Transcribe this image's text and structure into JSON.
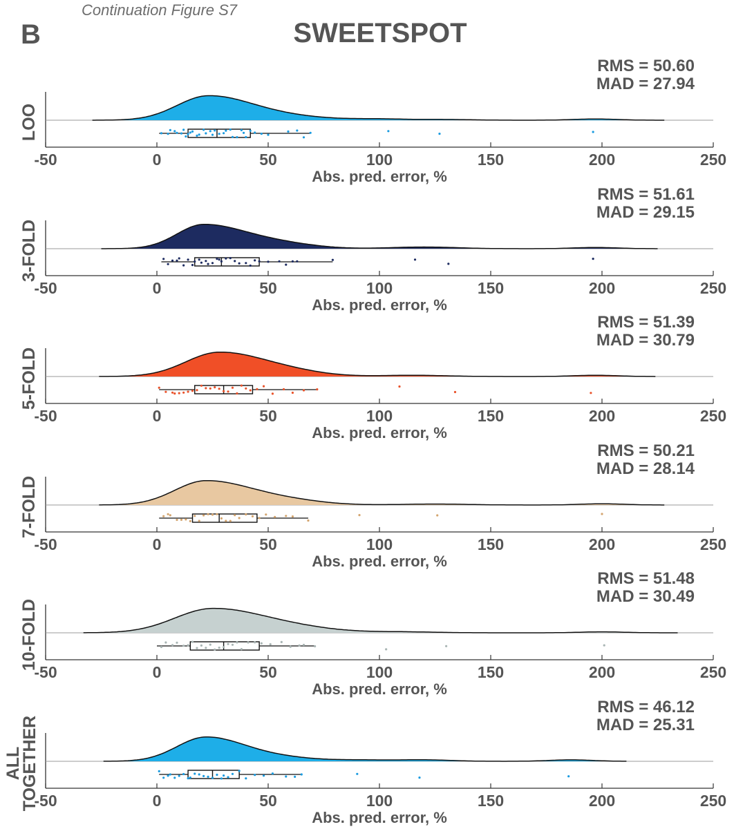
{
  "figure": {
    "caption": "Continuation Figure S7",
    "panel_letter": "B",
    "title": "SWEETSPOT"
  },
  "chart_data": [
    {
      "type": "raincloud",
      "panel": "LOO",
      "color": "#1eaee8",
      "dot_color": "#1a9be0",
      "rms_text": "RMS = 50.60",
      "mad_text": "MAD = 27.94",
      "xlabel": "Abs. pred. error, %",
      "xlim": [
        -50,
        250
      ],
      "xticks": [
        "-50",
        "0",
        "50",
        "100",
        "150",
        "200",
        "250"
      ],
      "density_range": [
        -29,
        228
      ],
      "density": {
        "mode": 23,
        "peak": 1.0,
        "sd_left": 14,
        "sd_right": 20,
        "bumps": [
          [
            60,
            0.12,
            18
          ],
          [
            100,
            0.05,
            12
          ],
          [
            130,
            0.03,
            12
          ],
          [
            197,
            0.05,
            10
          ]
        ]
      },
      "box": {
        "min": 1,
        "q1": 14,
        "median": 27,
        "q3": 42,
        "max": 69
      },
      "points": [
        2,
        5,
        6,
        8,
        9,
        11,
        12,
        13,
        14,
        15,
        16,
        18,
        19,
        21,
        22,
        24,
        25,
        26,
        28,
        30,
        31,
        33,
        34,
        36,
        38,
        39,
        40,
        42,
        44,
        47,
        50,
        59,
        63,
        66,
        69,
        104,
        127,
        196
      ]
    },
    {
      "type": "raincloud",
      "panel": "3-FOLD",
      "color": "#1d2b60",
      "dot_color": "#1d2b60",
      "rms_text": "RMS = 51.61",
      "mad_text": "MAD = 29.15",
      "xlabel": "Abs. pred. error, %",
      "xlim": [
        -50,
        250
      ],
      "xticks": [
        "-50",
        "0",
        "50",
        "100",
        "150",
        "200",
        "250"
      ],
      "density_range": [
        -25,
        225
      ],
      "density": {
        "mode": 21,
        "peak": 1.0,
        "sd_left": 12,
        "sd_right": 20,
        "bumps": [
          [
            58,
            0.15,
            15
          ],
          [
            120,
            0.07,
            15
          ],
          [
            197,
            0.05,
            10
          ]
        ]
      },
      "box": {
        "min": 2,
        "q1": 17,
        "median": 29,
        "q3": 46,
        "max": 79
      },
      "points": [
        3,
        5,
        7,
        9,
        10,
        12,
        14,
        16,
        17,
        19,
        20,
        22,
        23,
        25,
        27,
        28,
        29,
        31,
        33,
        35,
        37,
        40,
        42,
        44,
        46,
        50,
        55,
        58,
        61,
        63,
        79,
        116,
        131,
        196
      ]
    },
    {
      "type": "raincloud",
      "panel": "5-FOLD",
      "color": "#f04f27",
      "dot_color": "#e9532b",
      "rms_text": "RMS = 51.39",
      "mad_text": "MAD = 30.79",
      "xlabel": "Abs. pred. error, %",
      "xlim": [
        -50,
        250
      ],
      "xticks": [
        "-50",
        "0",
        "50",
        "100",
        "150",
        "200",
        "250"
      ],
      "density_range": [
        -26,
        224
      ],
      "density": {
        "mode": 28,
        "peak": 1.0,
        "sd_left": 15,
        "sd_right": 21,
        "bumps": [
          [
            62,
            0.12,
            15
          ],
          [
            115,
            0.05,
            15
          ],
          [
            197,
            0.05,
            10
          ]
        ]
      },
      "box": {
        "min": 1,
        "q1": 17,
        "median": 30,
        "q3": 43,
        "max": 72
      },
      "points": [
        1,
        4,
        7,
        8,
        10,
        12,
        14,
        16,
        18,
        20,
        22,
        24,
        26,
        28,
        30,
        32,
        34,
        36,
        38,
        40,
        42,
        45,
        48,
        52,
        57,
        61,
        66,
        72,
        109,
        134,
        195
      ]
    },
    {
      "type": "raincloud",
      "panel": "7-FOLD",
      "color": "#e8c8a1",
      "dot_color": "#d4a56f",
      "rms_text": "RMS = 50.21",
      "mad_text": "MAD = 28.14",
      "xlabel": "Abs. pred. error, %",
      "xlim": [
        -50,
        250
      ],
      "xticks": [
        "-50",
        "0",
        "50",
        "100",
        "150",
        "200",
        "250"
      ],
      "density_range": [
        -26,
        228
      ],
      "density": {
        "mode": 22,
        "peak": 1.0,
        "sd_left": 14,
        "sd_right": 21,
        "bumps": [
          [
            60,
            0.14,
            16
          ],
          [
            125,
            0.04,
            15
          ],
          [
            200,
            0.05,
            10
          ]
        ]
      },
      "box": {
        "min": 1,
        "q1": 16,
        "median": 28,
        "q3": 45,
        "max": 68
      },
      "points": [
        3,
        5,
        6,
        9,
        11,
        13,
        15,
        17,
        19,
        21,
        23,
        25,
        27,
        29,
        31,
        33,
        35,
        37,
        40,
        43,
        46,
        49,
        53,
        58,
        61,
        68,
        91,
        126,
        200
      ]
    },
    {
      "type": "raincloud",
      "panel": "10-FOLD",
      "color": "#c6d1d0",
      "dot_color": "#a9b5b4",
      "rms_text": "RMS = 51.48",
      "mad_text": "MAD = 30.49",
      "xlabel": "Abs. pred. error, %",
      "xlim": [
        -50,
        250
      ],
      "xticks": [
        "-50",
        "0",
        "50",
        "100",
        "150",
        "200",
        "250"
      ],
      "density_range": [
        -33,
        234
      ],
      "density": {
        "mode": 25,
        "peak": 1.0,
        "sd_left": 17,
        "sd_right": 24,
        "bumps": [
          [
            65,
            0.12,
            18
          ],
          [
            110,
            0.04,
            15
          ],
          [
            200,
            0.04,
            10
          ]
        ]
      },
      "box": {
        "min": 0,
        "q1": 15,
        "median": 30,
        "q3": 46,
        "max": 71
      },
      "points": [
        2,
        4,
        7,
        9,
        12,
        14,
        16,
        18,
        20,
        22,
        24,
        26,
        28,
        30,
        32,
        34,
        36,
        38,
        41,
        44,
        47,
        51,
        56,
        60,
        64,
        66,
        71,
        103,
        130,
        201
      ]
    },
    {
      "type": "raincloud",
      "panel": "ALL TOGETHER",
      "label_lines": [
        "ALL",
        "TOGETHER"
      ],
      "color": "#1eaee8",
      "dot_color": "#1a9be0",
      "rms_text": "RMS = 46.12",
      "mad_text": "MAD = 25.31",
      "xlabel": "Abs. pred. error, %",
      "xlim": [
        -50,
        250
      ],
      "xticks": [
        "-50",
        "0",
        "50",
        "100",
        "150",
        "200",
        "250"
      ],
      "density_range": [
        -24,
        211
      ],
      "density": {
        "mode": 22,
        "peak": 1.0,
        "sd_left": 13,
        "sd_right": 18,
        "bumps": [
          [
            58,
            0.12,
            15
          ],
          [
            92,
            0.05,
            12
          ],
          [
            120,
            0.06,
            12
          ],
          [
            186,
            0.06,
            10
          ]
        ]
      },
      "box": {
        "min": 1,
        "q1": 14,
        "median": 25,
        "q3": 37,
        "max": 65
      },
      "points": [
        1,
        3,
        5,
        6,
        8,
        10,
        12,
        14,
        15,
        17,
        19,
        21,
        23,
        25,
        27,
        29,
        30,
        32,
        34,
        37,
        40,
        44,
        48,
        52,
        58,
        62,
        65,
        90,
        118,
        185
      ]
    }
  ]
}
